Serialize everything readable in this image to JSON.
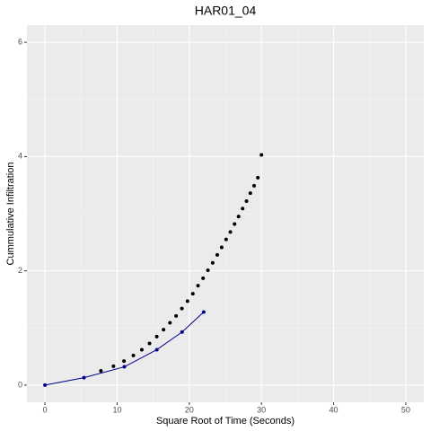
{
  "chart_data": {
    "type": "scatter",
    "title": "HAR01_04",
    "x_label": "Square Root of Time (Seconds)",
    "y_label": "Cummulative Infiltration",
    "xlim": [
      -2.5,
      52.5
    ],
    "xticks": [
      0,
      10,
      20,
      30,
      40,
      50
    ],
    "ylim": [
      -0.3,
      6.3
    ],
    "yticks": [
      0,
      2,
      4,
      6
    ],
    "grid": true,
    "series": [
      {
        "color": "#000000",
        "line": false,
        "x": [
          7.75,
          9.49,
          10.95,
          12.25,
          13.42,
          14.49,
          15.49,
          16.43,
          17.32,
          18.17,
          18.97,
          19.75,
          20.49,
          21.21,
          21.91,
          22.58,
          23.24,
          23.87,
          24.49,
          25.1,
          25.69,
          26.27,
          26.83,
          27.39,
          27.93,
          28.46,
          28.98,
          29.5,
          30
        ],
        "values": [
          0.25,
          0.33,
          0.42,
          0.52,
          0.62,
          0.73,
          0.85,
          0.97,
          1.09,
          1.21,
          1.34,
          1.47,
          1.6,
          1.74,
          1.87,
          2.01,
          2.14,
          2.28,
          2.41,
          2.55,
          2.68,
          2.82,
          2.95,
          3.09,
          3.22,
          3.36,
          3.49,
          3.63,
          4.03
        ]
      },
      {
        "color": "#00008b",
        "line": true,
        "x": [
          0,
          5.4,
          11,
          15.5,
          19,
          22
        ],
        "values": [
          0,
          0.13,
          0.32,
          0.62,
          0.93,
          1.28
        ]
      }
    ]
  }
}
